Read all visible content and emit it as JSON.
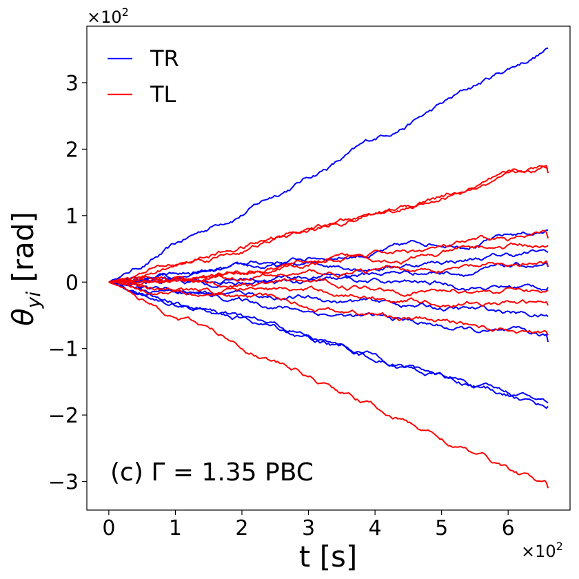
{
  "chart_data": {
    "type": "line",
    "title": "",
    "xlabel": "t [s]",
    "ylabel_symbol": "θ",
    "ylabel_subscript": "yi",
    "ylabel_unit": " [rad]",
    "x_multiplier": {
      "base": "×10",
      "exp": "2"
    },
    "y_multiplier": {
      "base": "×10",
      "exp": "2"
    },
    "xlim": [
      -0.33,
      6.93
    ],
    "ylim": [
      -3.43,
      3.85
    ],
    "x_ticks": [
      0,
      1,
      2,
      3,
      4,
      5,
      6
    ],
    "x_tick_labels": [
      "0",
      "1",
      "2",
      "3",
      "4",
      "5",
      "6"
    ],
    "y_ticks": [
      -3,
      -2,
      -1,
      0,
      1,
      2,
      3
    ],
    "y_tick_labels": [
      "−3",
      "−2",
      "−1",
      "0",
      "1",
      "2",
      "3"
    ],
    "x_end": 6.6,
    "annotation": "(c)  Γ = 1.35 PBC",
    "legend": {
      "position": "top-left",
      "entries": [
        {
          "label": "TR",
          "color": "#0000ff"
        },
        {
          "label": "TL",
          "color": "#ff0000"
        }
      ]
    },
    "series": [
      {
        "name": "TR",
        "color": "#0000ff",
        "final": 3.52
      },
      {
        "name": "TR",
        "color": "#0000ff",
        "final": 0.78
      },
      {
        "name": "TR",
        "color": "#0000ff",
        "final": 0.45
      },
      {
        "name": "TR",
        "color": "#0000ff",
        "final": 0.23
      },
      {
        "name": "TR",
        "color": "#0000ff",
        "final": -0.08
      },
      {
        "name": "TR",
        "color": "#0000ff",
        "final": -0.52
      },
      {
        "name": "TR",
        "color": "#0000ff",
        "final": -0.9
      },
      {
        "name": "TR",
        "color": "#0000ff",
        "final": -1.82
      },
      {
        "name": "TR",
        "color": "#0000ff",
        "final": -1.87
      },
      {
        "name": "TL",
        "color": "#ff0000",
        "final": 1.71
      },
      {
        "name": "TL",
        "color": "#ff0000",
        "final": 1.64
      },
      {
        "name": "TL",
        "color": "#ff0000",
        "final": 0.66
      },
      {
        "name": "TL",
        "color": "#ff0000",
        "final": 0.55
      },
      {
        "name": "TL",
        "color": "#ff0000",
        "final": 0.24
      },
      {
        "name": "TL",
        "color": "#ff0000",
        "final": -0.12
      },
      {
        "name": "TL",
        "color": "#ff0000",
        "final": -0.35
      },
      {
        "name": "TL",
        "color": "#ff0000",
        "final": -0.8
      },
      {
        "name": "TL",
        "color": "#ff0000",
        "final": -3.1
      }
    ]
  }
}
